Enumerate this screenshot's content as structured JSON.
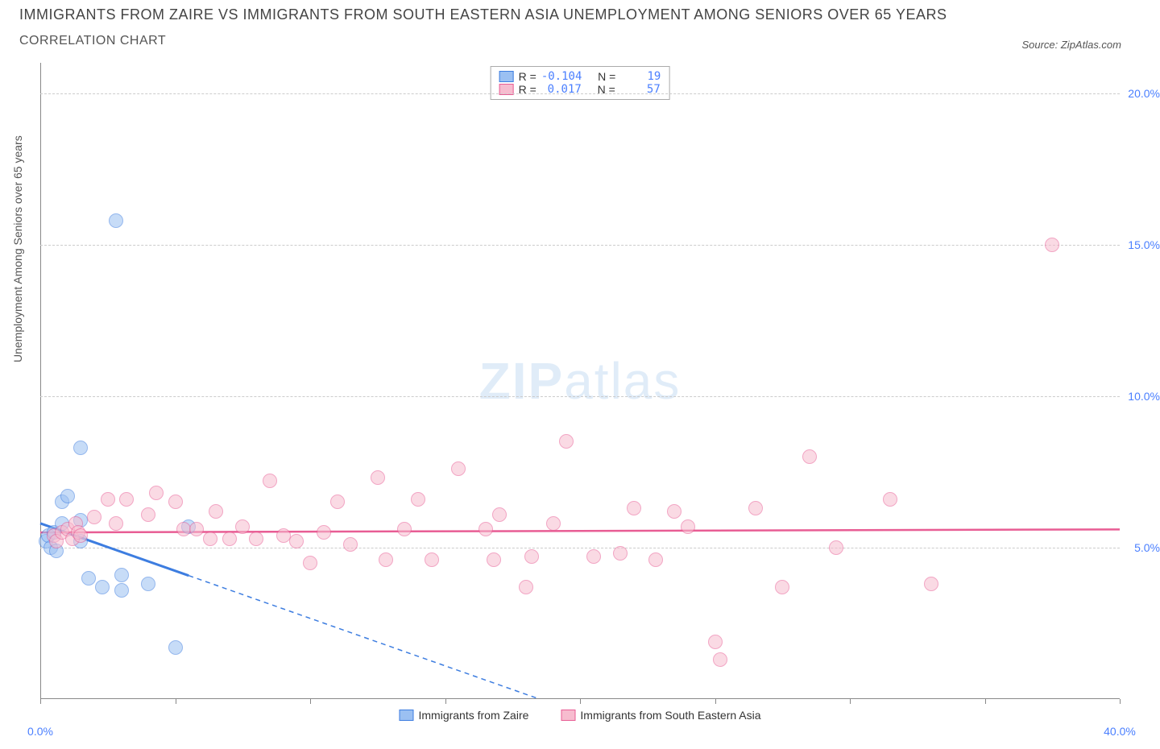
{
  "title_main": "IMMIGRANTS FROM ZAIRE VS IMMIGRANTS FROM SOUTH EASTERN ASIA UNEMPLOYMENT AMONG SENIORS OVER 65 YEARS",
  "title_sub": "CORRELATION CHART",
  "source_prefix": "Source: ",
  "source_name": "ZipAtlas.com",
  "yaxis_label": "Unemployment Among Seniors over 65 years",
  "watermark_bold": "ZIP",
  "watermark_rest": "atlas",
  "chart": {
    "type": "scatter",
    "xlim": [
      0,
      40
    ],
    "ylim": [
      0,
      21
    ],
    "background_color": "#ffffff",
    "grid_color": "#cccccc",
    "yticks": [
      {
        "v": 5,
        "label": "5.0%"
      },
      {
        "v": 10,
        "label": "10.0%"
      },
      {
        "v": 15,
        "label": "15.0%"
      },
      {
        "v": 20,
        "label": "20.0%"
      }
    ],
    "xticks": [
      0,
      5,
      10,
      15,
      20,
      25,
      30,
      35,
      40
    ],
    "xtick_labels": [
      {
        "v": 0,
        "label": "0.0%"
      },
      {
        "v": 40,
        "label": "40.0%"
      }
    ],
    "point_radius": 9,
    "point_opacity": 0.55,
    "series": [
      {
        "name": "Immigrants from Zaire",
        "fill": "#9bc0f2",
        "stroke": "#3d7de0",
        "R": "-0.104",
        "N": "19",
        "trend": {
          "y0": 5.8,
          "x_at_y0_end": 18.5,
          "solid_until_x": 5.5,
          "dashed_color": "#3d7de0"
        },
        "points": [
          [
            0.2,
            5.2
          ],
          [
            0.3,
            5.4
          ],
          [
            0.4,
            5.0
          ],
          [
            0.5,
            5.5
          ],
          [
            0.6,
            4.9
          ],
          [
            0.8,
            6.5
          ],
          [
            0.8,
            5.8
          ],
          [
            1.0,
            6.7
          ],
          [
            1.5,
            8.3
          ],
          [
            1.5,
            5.9
          ],
          [
            1.5,
            5.2
          ],
          [
            1.8,
            4.0
          ],
          [
            2.3,
            3.7
          ],
          [
            2.8,
            15.8
          ],
          [
            3.0,
            4.1
          ],
          [
            3.0,
            3.6
          ],
          [
            4.0,
            3.8
          ],
          [
            5.0,
            1.7
          ],
          [
            5.5,
            5.7
          ]
        ]
      },
      {
        "name": "Immigrants from South Eastern Asia",
        "fill": "#f7bccf",
        "stroke": "#e85d94",
        "R": "0.017",
        "N": "57",
        "trend": {
          "y0": 5.5,
          "y40": 5.6
        },
        "points": [
          [
            0.5,
            5.4
          ],
          [
            0.6,
            5.2
          ],
          [
            0.8,
            5.5
          ],
          [
            1.0,
            5.6
          ],
          [
            1.2,
            5.3
          ],
          [
            1.3,
            5.8
          ],
          [
            1.4,
            5.5
          ],
          [
            1.5,
            5.4
          ],
          [
            2.0,
            6.0
          ],
          [
            2.5,
            6.6
          ],
          [
            2.8,
            5.8
          ],
          [
            3.2,
            6.6
          ],
          [
            4.0,
            6.1
          ],
          [
            4.3,
            6.8
          ],
          [
            5.0,
            6.5
          ],
          [
            5.3,
            5.6
          ],
          [
            5.8,
            5.6
          ],
          [
            6.3,
            5.3
          ],
          [
            6.5,
            6.2
          ],
          [
            7.0,
            5.3
          ],
          [
            7.5,
            5.7
          ],
          [
            8.0,
            5.3
          ],
          [
            8.5,
            7.2
          ],
          [
            9.0,
            5.4
          ],
          [
            9.5,
            5.2
          ],
          [
            10.0,
            4.5
          ],
          [
            10.5,
            5.5
          ],
          [
            11.0,
            6.5
          ],
          [
            11.5,
            5.1
          ],
          [
            12.5,
            7.3
          ],
          [
            12.8,
            4.6
          ],
          [
            13.5,
            5.6
          ],
          [
            14.0,
            6.6
          ],
          [
            14.5,
            4.6
          ],
          [
            15.5,
            7.6
          ],
          [
            16.5,
            5.6
          ],
          [
            16.8,
            4.6
          ],
          [
            17.0,
            6.1
          ],
          [
            18.0,
            3.7
          ],
          [
            18.2,
            4.7
          ],
          [
            19.0,
            5.8
          ],
          [
            19.5,
            8.5
          ],
          [
            20.5,
            4.7
          ],
          [
            21.5,
            4.8
          ],
          [
            22.0,
            6.3
          ],
          [
            22.8,
            4.6
          ],
          [
            23.5,
            6.2
          ],
          [
            24.0,
            5.7
          ],
          [
            25.0,
            1.9
          ],
          [
            25.2,
            1.3
          ],
          [
            26.5,
            6.3
          ],
          [
            27.5,
            3.7
          ],
          [
            28.5,
            8.0
          ],
          [
            29.5,
            5.0
          ],
          [
            31.5,
            6.6
          ],
          [
            33.0,
            3.8
          ],
          [
            37.5,
            15.0
          ]
        ]
      }
    ]
  },
  "legend_top": {
    "r_label": "R =",
    "n_label": "N ="
  },
  "legend_bottom": [
    {
      "swatch": 0,
      "label": "Immigrants from Zaire"
    },
    {
      "swatch": 1,
      "label": "Immigrants from South Eastern Asia"
    }
  ]
}
